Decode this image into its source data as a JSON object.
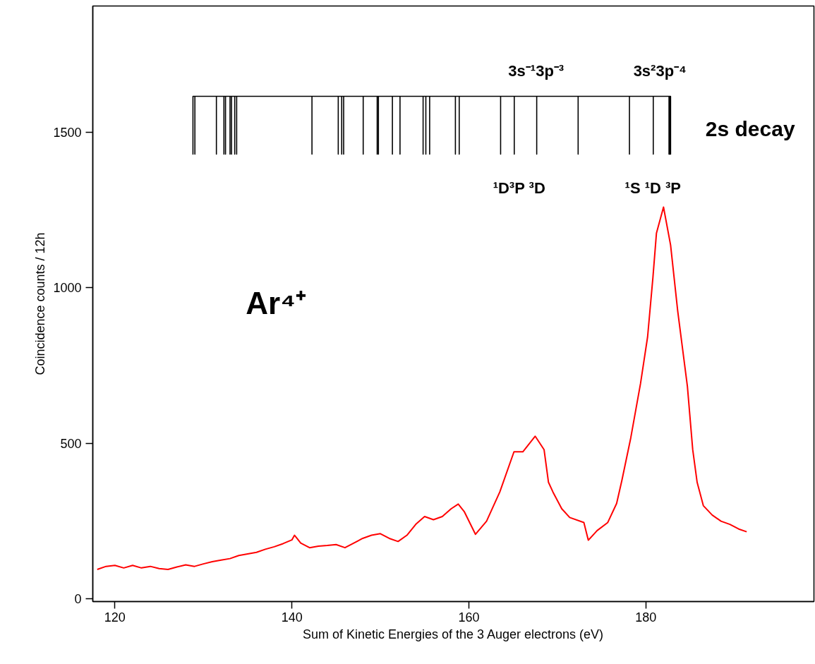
{
  "chart_data": {
    "type": "line",
    "xlabel": "Sum of Kinetic Energies of the 3 Auger electrons (eV)",
    "ylabel": "Coincidence counts / 12h",
    "xlim": [
      117.5,
      199
    ],
    "ylim": [
      -8,
      1905
    ],
    "xticks": [
      120,
      140,
      160,
      180
    ],
    "yticks": [
      0,
      500,
      1000,
      1500
    ],
    "series": [
      {
        "color": "#ff0000",
        "x": [
          118,
          119,
          120,
          121,
          122,
          123,
          124,
          125,
          126,
          127,
          128,
          129,
          130,
          131,
          132,
          133,
          134,
          135,
          136,
          137,
          138,
          139,
          140,
          140.3,
          141,
          142,
          143,
          144,
          145,
          146,
          147,
          148,
          149,
          150,
          151,
          152,
          153,
          154,
          155,
          156,
          157,
          158,
          158.8,
          159.5,
          160.75,
          162,
          163.5,
          165.1,
          166.1,
          167.5,
          168.5,
          169,
          169.5,
          170.5,
          171.4,
          173,
          173.5,
          174.5,
          175.7,
          176.7,
          177.3,
          178.3,
          179.4,
          180.2,
          180.8,
          181.2,
          182,
          182.8,
          183.6,
          184.7,
          185.3,
          185.8,
          186.5,
          187.5,
          188.5,
          189.5,
          190.5,
          191.4
        ],
        "values": [
          95,
          105,
          108,
          100,
          108,
          100,
          105,
          98,
          95,
          103,
          110,
          105,
          113,
          120,
          125,
          130,
          140,
          145,
          150,
          160,
          168,
          178,
          190,
          205,
          180,
          165,
          170,
          172,
          175,
          165,
          180,
          195,
          205,
          210,
          195,
          185,
          205,
          240,
          265,
          255,
          265,
          290,
          305,
          280,
          208,
          250,
          344,
          473,
          473,
          523,
          480,
          375,
          344,
          290,
          262,
          246,
          189,
          220,
          246,
          307,
          382,
          518,
          692,
          842,
          1032,
          1175,
          1259,
          1137,
          926,
          683,
          480,
          375,
          300,
          270,
          250,
          240,
          225,
          216
        ]
      },
      {
        "color": "#000000",
        "x": [
          128.82,
          128.82,
          128.82,
          129.04,
          129.04,
          129.04,
          131.47,
          131.47,
          131.47,
          132.32,
          132.32,
          132.32,
          132.5,
          132.5,
          132.5,
          133.01,
          133.01,
          133.01,
          133.18,
          133.18,
          133.18,
          133.54,
          133.54,
          133.54,
          133.76,
          133.76,
          133.76,
          142.27,
          142.27,
          142.27,
          145.24,
          145.24,
          145.24,
          145.63,
          145.63,
          145.63,
          145.85,
          145.85,
          145.85,
          148.06,
          148.06,
          148.06,
          149.64,
          149.64,
          149.64,
          149.78,
          149.78,
          149.78,
          151.36,
          151.36,
          151.36,
          152.22,
          152.22,
          152.22,
          154.83,
          154.83,
          154.83,
          155.14,
          155.14,
          155.14,
          155.57,
          155.57,
          155.57,
          158.48,
          158.48,
          158.48,
          158.91,
          158.91,
          158.91,
          163.59,
          163.59,
          163.59,
          165.13,
          165.13,
          165.13,
          167.67,
          167.67,
          167.67,
          172.35,
          172.35,
          172.35,
          178.15,
          178.15,
          178.15,
          180.84,
          180.84,
          180.84,
          182.62,
          182.62,
          182.62,
          182.7,
          182.7,
          182.7,
          182.8,
          182.8,
          182.8
        ],
        "values": [
          1615,
          1429,
          1615,
          1615,
          1429,
          1615,
          1615,
          1429,
          1615,
          1615,
          1429,
          1615,
          1615,
          1429,
          1615,
          1615,
          1429,
          1615,
          1615,
          1429,
          1615,
          1615,
          1429,
          1615,
          1615,
          1429,
          1615,
          1615,
          1429,
          1615,
          1615,
          1429,
          1615,
          1615,
          1429,
          1615,
          1615,
          1429,
          1615,
          1615,
          1429,
          1615,
          1615,
          1429,
          1615,
          1615,
          1429,
          1615,
          1615,
          1429,
          1615,
          1615,
          1429,
          1615,
          1615,
          1429,
          1615,
          1615,
          1429,
          1615,
          1615,
          1429,
          1615,
          1615,
          1429,
          1615,
          1615,
          1429,
          1615,
          1615,
          1429,
          1615,
          1615,
          1429,
          1615,
          1615,
          1429,
          1615,
          1615,
          1429,
          1615,
          1615,
          1429,
          1615,
          1615,
          1429,
          1615,
          1615,
          1429,
          1615,
          1615,
          1429,
          1615,
          1615,
          1429,
          1615
        ]
      }
    ],
    "annotations": [
      "3s⁻¹3p⁻³",
      "3s²3p⁻⁴",
      "¹D³P ³D",
      "¹S ¹D ³P",
      "2s decay",
      "Ar⁴⁺"
    ]
  }
}
